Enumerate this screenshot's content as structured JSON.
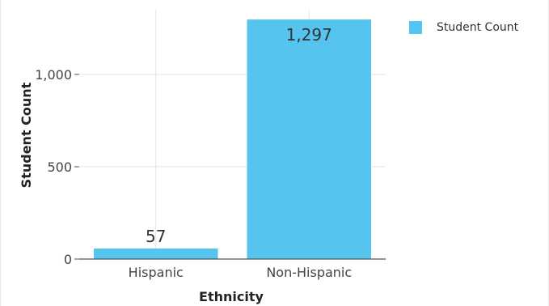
{
  "chart_data": {
    "type": "bar",
    "categories": [
      "Hispanic",
      "Non-Hispanic"
    ],
    "series": [
      {
        "name": "Student Count",
        "values": [
          57,
          1297
        ]
      }
    ],
    "data_labels": [
      "57",
      "1,297"
    ],
    "y_ticks": [
      0,
      500,
      1000
    ],
    "y_tick_labels": [
      "0",
      "500",
      "1,000"
    ],
    "xlabel": "Ethnicity",
    "ylabel": "Student Count",
    "ylim": [
      0,
      1350
    ],
    "grid": true,
    "legend_position": "top-right",
    "bar_color": "#55c4ef"
  }
}
